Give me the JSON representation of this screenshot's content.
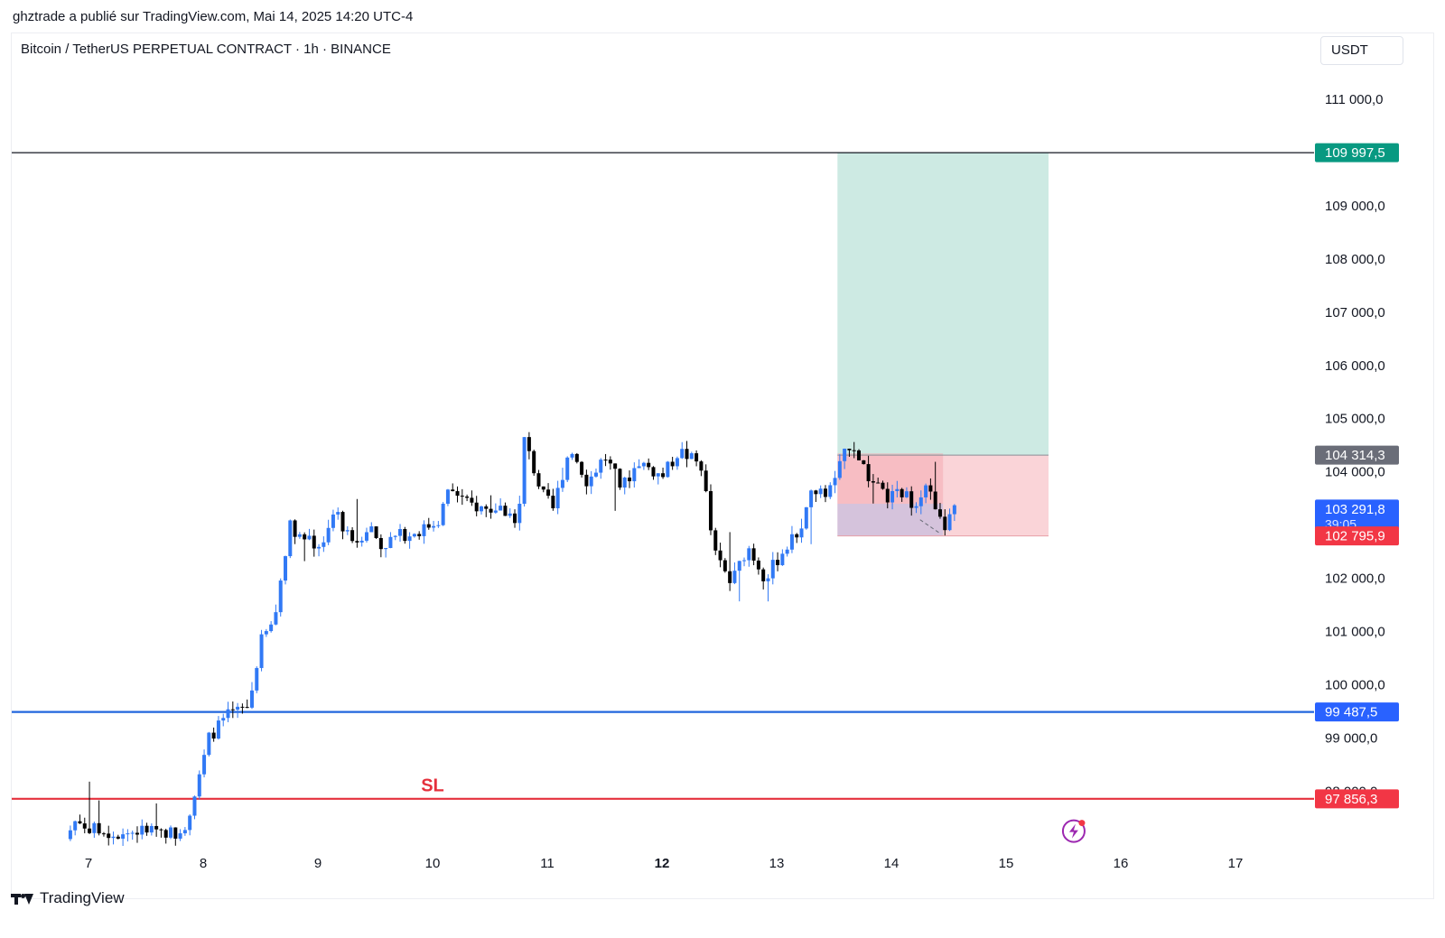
{
  "header": {
    "publisher_line": "ghztrade a publié sur TradingView.com, Mai 14, 2025 14:20 UTC-4"
  },
  "symbol": {
    "title": "Bitcoin / TetherUS PERPETUAL CONTRACT · 1h · BINANCE",
    "currency": "USDT"
  },
  "footer": {
    "brand": "TradingView"
  },
  "colors": {
    "up": "#3179f5",
    "down": "#000000",
    "target_zone": "#cdeae3",
    "stop_zone": "#fad4d8",
    "sl_line": "#e5303c",
    "support_line": "#2266dd",
    "target_line": "#131722",
    "tag_green": "#089981",
    "tag_blue": "#2962ff",
    "tag_red": "#f23645",
    "tag_gray": "#6a6d78"
  },
  "icons": {
    "alert": "lightning-alert-icon",
    "brand": "tradingview-logo-icon"
  },
  "chart_data": {
    "type": "candlestick",
    "y_scale": "linear",
    "ylim": [
      97500,
      111500
    ],
    "xlim": [
      6.5,
      17.6
    ],
    "y_ticks": [
      {
        "value": 111000,
        "label": "111 000,0"
      },
      {
        "value": 109000,
        "label": "109 000,0"
      },
      {
        "value": 108000,
        "label": "108 000,0"
      },
      {
        "value": 107000,
        "label": "107 000,0"
      },
      {
        "value": 106000,
        "label": "106 000,0"
      },
      {
        "value": 105000,
        "label": "105 000,0"
      },
      {
        "value": 104000,
        "label": "104 000,0"
      },
      {
        "value": 102000,
        "label": "102 000,0"
      },
      {
        "value": 101000,
        "label": "101 000,0"
      },
      {
        "value": 100000,
        "label": "100 000,0"
      },
      {
        "value": 99000,
        "label": "99 000,0"
      },
      {
        "value": 98000,
        "label": "98 000,0"
      }
    ],
    "x_ticks": [
      {
        "value": 7,
        "label": "7",
        "bold": false
      },
      {
        "value": 8,
        "label": "8",
        "bold": false
      },
      {
        "value": 9,
        "label": "9",
        "bold": false
      },
      {
        "value": 10,
        "label": "10",
        "bold": false
      },
      {
        "value": 11,
        "label": "11",
        "bold": false
      },
      {
        "value": 12,
        "label": "12",
        "bold": true
      },
      {
        "value": 13,
        "label": "13",
        "bold": false
      },
      {
        "value": 14,
        "label": "14",
        "bold": false
      },
      {
        "value": 15,
        "label": "15",
        "bold": false
      },
      {
        "value": 16,
        "label": "16",
        "bold": false
      },
      {
        "value": 17,
        "label": "17",
        "bold": false
      }
    ],
    "horizontal_lines": [
      {
        "value": 109997.5,
        "color": "#131722",
        "tag": "109 997,5",
        "tag_color": "#089981"
      },
      {
        "value": 99487.5,
        "color": "#2266dd",
        "tag": "99 487,5",
        "tag_color": "#2962ff"
      },
      {
        "value": 97856.3,
        "color": "#e5303c",
        "tag": "97 856,3",
        "tag_color": "#f23645"
      }
    ],
    "price_tags": [
      {
        "value": 104314.3,
        "label": "104 314,3",
        "color": "#6a6d78"
      },
      {
        "value": 103291.8,
        "label": "103 291,8",
        "sub": "39:05",
        "color": "#2962ff"
      },
      {
        "value": 102795.9,
        "label": "102 795,9",
        "color": "#f23645"
      }
    ],
    "position": {
      "x_start": 13.53,
      "x_end": 15.37,
      "entry": 104314.3,
      "target": 109997.5,
      "stop": 102795.9,
      "fill_x_end": 14.45,
      "fill_low": 102795.9,
      "fill_high": 103400
    },
    "annotations": [
      {
        "text": "SL",
        "x": 10.0,
        "value": 98100,
        "color": "#e5303c"
      }
    ],
    "alert_icon": {
      "x": 15.59,
      "value": 97250
    },
    "anchors": [
      {
        "x": 6.8,
        "v": 97100
      },
      {
        "x": 6.9,
        "v": 97500
      },
      {
        "x": 7.0,
        "v": 97300
      },
      {
        "x": 7.25,
        "v": 97200
      },
      {
        "x": 7.45,
        "v": 97250
      },
      {
        "x": 7.6,
        "v": 97300
      },
      {
        "x": 7.75,
        "v": 97200
      },
      {
        "x": 7.85,
        "v": 97400
      },
      {
        "x": 7.95,
        "v": 98100
      },
      {
        "x": 8.05,
        "v": 99000
      },
      {
        "x": 8.2,
        "v": 99400
      },
      {
        "x": 8.3,
        "v": 99500
      },
      {
        "x": 8.4,
        "v": 99600
      },
      {
        "x": 8.5,
        "v": 100800
      },
      {
        "x": 8.62,
        "v": 101200
      },
      {
        "x": 8.75,
        "v": 103000
      },
      {
        "x": 8.9,
        "v": 102700
      },
      {
        "x": 9.05,
        "v": 102600
      },
      {
        "x": 9.15,
        "v": 103300
      },
      {
        "x": 9.3,
        "v": 102600
      },
      {
        "x": 9.45,
        "v": 103000
      },
      {
        "x": 9.55,
        "v": 102600
      },
      {
        "x": 9.7,
        "v": 102800
      },
      {
        "x": 9.9,
        "v": 102900
      },
      {
        "x": 10.05,
        "v": 103100
      },
      {
        "x": 10.15,
        "v": 103700
      },
      {
        "x": 10.3,
        "v": 103400
      },
      {
        "x": 10.45,
        "v": 103300
      },
      {
        "x": 10.6,
        "v": 103300
      },
      {
        "x": 10.75,
        "v": 103100
      },
      {
        "x": 10.8,
        "v": 104600
      },
      {
        "x": 10.95,
        "v": 103600
      },
      {
        "x": 11.05,
        "v": 103300
      },
      {
        "x": 11.2,
        "v": 104500
      },
      {
        "x": 11.35,
        "v": 103800
      },
      {
        "x": 11.5,
        "v": 104300
      },
      {
        "x": 11.65,
        "v": 103700
      },
      {
        "x": 11.8,
        "v": 104200
      },
      {
        "x": 12.0,
        "v": 103900
      },
      {
        "x": 12.15,
        "v": 104400
      },
      {
        "x": 12.35,
        "v": 104100
      },
      {
        "x": 12.45,
        "v": 102500
      },
      {
        "x": 12.6,
        "v": 101900
      },
      {
        "x": 12.75,
        "v": 102600
      },
      {
        "x": 12.9,
        "v": 102000
      },
      {
        "x": 13.05,
        "v": 102500
      },
      {
        "x": 13.2,
        "v": 102900
      },
      {
        "x": 13.3,
        "v": 103600
      },
      {
        "x": 13.45,
        "v": 103600
      },
      {
        "x": 13.55,
        "v": 104100
      },
      {
        "x": 13.65,
        "v": 104600
      },
      {
        "x": 13.8,
        "v": 103900
      },
      {
        "x": 13.95,
        "v": 103500
      },
      {
        "x": 14.1,
        "v": 103600
      },
      {
        "x": 14.2,
        "v": 103400
      },
      {
        "x": 14.3,
        "v": 103800
      },
      {
        "x": 14.45,
        "v": 102900
      },
      {
        "x": 14.55,
        "v": 103300
      }
    ]
  }
}
